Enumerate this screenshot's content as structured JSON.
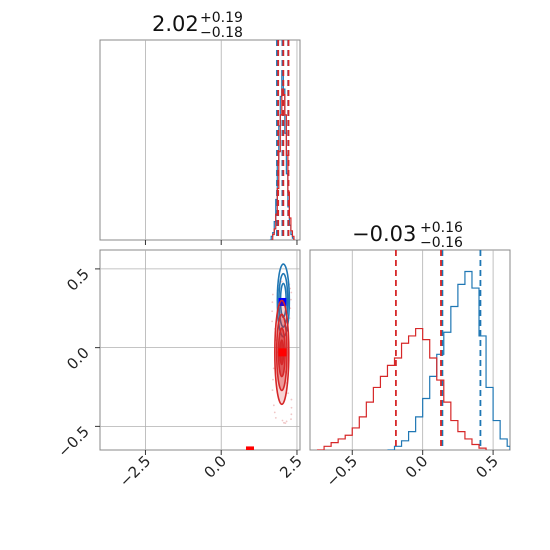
{
  "chart_data": [
    {
      "type": "histogram",
      "panel": "marginal-1",
      "title": {
        "value": "2.02",
        "upper": "+0.19",
        "lower": "−0.18"
      },
      "xlim": [
        -4.0,
        2.6
      ],
      "grid": true,
      "x_tick_values": [
        -2.5,
        0.0,
        2.5
      ],
      "series": [
        {
          "color": "#1f77b4",
          "bins": [
            [
              1.6,
              0.0
            ],
            [
              1.65,
              0.02
            ],
            [
              1.7,
              0.04
            ],
            [
              1.75,
              0.1
            ],
            [
              1.8,
              0.22
            ],
            [
              1.85,
              0.42
            ],
            [
              1.9,
              0.62
            ],
            [
              1.95,
              0.78
            ],
            [
              2.0,
              0.92
            ],
            [
              2.05,
              0.82
            ],
            [
              2.1,
              0.58
            ],
            [
              2.15,
              0.36
            ],
            [
              2.2,
              0.18
            ],
            [
              2.25,
              0.08
            ],
            [
              2.3,
              0.03
            ],
            [
              2.35,
              0.01
            ],
            [
              2.4,
              0.0
            ]
          ],
          "quantile_lines": [
            1.84,
            2.02,
            2.21
          ]
        },
        {
          "color": "#d62728",
          "bins": [
            [
              1.65,
              0.0
            ],
            [
              1.7,
              0.03
            ],
            [
              1.75,
              0.06
            ],
            [
              1.8,
              0.14
            ],
            [
              1.85,
              0.28
            ],
            [
              1.9,
              0.48
            ],
            [
              1.95,
              0.68
            ],
            [
              2.0,
              0.82
            ],
            [
              2.05,
              0.79
            ],
            [
              2.1,
              0.68
            ],
            [
              2.15,
              0.46
            ],
            [
              2.2,
              0.26
            ],
            [
              2.25,
              0.12
            ],
            [
              2.3,
              0.05
            ],
            [
              2.35,
              0.02
            ],
            [
              2.4,
              0.0
            ]
          ],
          "quantile_lines": [
            1.88,
            2.05,
            2.22
          ]
        }
      ]
    },
    {
      "type": "contour",
      "panel": "joint",
      "xlim": [
        -4.0,
        2.6
      ],
      "ylim": [
        -0.65,
        0.62
      ],
      "grid": true,
      "x_tick_labels": [
        "−2.5",
        "0.0",
        "2.5"
      ],
      "y_tick_labels": [
        "0.5",
        "0.0",
        "−0.5"
      ],
      "x_tick_values": [
        -2.5,
        0.0,
        2.5
      ],
      "y_tick_values": [
        0.5,
        0.0,
        -0.5
      ],
      "series": [
        {
          "color": "#1f77b4",
          "center": [
            2.05,
            0.3
          ],
          "spread": [
            0.12,
            0.14
          ],
          "marker": [
            2.02,
            0.29
          ],
          "marker_color": "#0000ff"
        },
        {
          "color": "#d62728",
          "center": [
            2.0,
            -0.03
          ],
          "spread": [
            0.14,
            0.2
          ],
          "marker": [
            2.02,
            -0.03
          ],
          "marker_color": "#ff0000"
        }
      ],
      "extra_marker": {
        "point": [
          0.95,
          -0.64
        ],
        "color": "#ff0000"
      }
    },
    {
      "type": "histogram",
      "panel": "marginal-2",
      "title": {
        "value": "−0.03",
        "upper": "+0.16",
        "lower": "−0.16"
      },
      "xlim": [
        -0.8,
        0.62
      ],
      "grid": true,
      "x_tick_labels": [
        "−0.5",
        "0.0",
        "0.5"
      ],
      "x_tick_values": [
        -0.5,
        0.0,
        0.5
      ],
      "series": [
        {
          "color": "#1f77b4",
          "bins": [
            [
              -0.25,
              0.0
            ],
            [
              -0.2,
              0.02
            ],
            [
              -0.15,
              0.05
            ],
            [
              -0.1,
              0.1
            ],
            [
              -0.05,
              0.18
            ],
            [
              0.0,
              0.28
            ],
            [
              0.05,
              0.4
            ],
            [
              0.1,
              0.52
            ],
            [
              0.15,
              0.64
            ],
            [
              0.2,
              0.78
            ],
            [
              0.25,
              0.9
            ],
            [
              0.3,
              0.97
            ],
            [
              0.35,
              0.88
            ],
            [
              0.4,
              0.62
            ],
            [
              0.45,
              0.34
            ],
            [
              0.5,
              0.16
            ],
            [
              0.55,
              0.06
            ],
            [
              0.6,
              0.02
            ],
            [
              0.62,
              0.0
            ]
          ],
          "quantile_lines": [
            0.14,
            0.41
          ]
        },
        {
          "color": "#d62728",
          "bins": [
            [
              -0.75,
              0.0
            ],
            [
              -0.7,
              0.02
            ],
            [
              -0.65,
              0.04
            ],
            [
              -0.6,
              0.06
            ],
            [
              -0.55,
              0.08
            ],
            [
              -0.5,
              0.12
            ],
            [
              -0.45,
              0.18
            ],
            [
              -0.4,
              0.26
            ],
            [
              -0.35,
              0.34
            ],
            [
              -0.3,
              0.4
            ],
            [
              -0.25,
              0.46
            ],
            [
              -0.2,
              0.5
            ],
            [
              -0.15,
              0.58
            ],
            [
              -0.1,
              0.62
            ],
            [
              -0.05,
              0.66
            ],
            [
              0.0,
              0.6
            ],
            [
              0.05,
              0.5
            ],
            [
              0.1,
              0.38
            ],
            [
              0.15,
              0.26
            ],
            [
              0.2,
              0.16
            ],
            [
              0.25,
              0.1
            ],
            [
              0.3,
              0.06
            ],
            [
              0.35,
              0.03
            ],
            [
              0.4,
              0.01
            ],
            [
              0.45,
              0.0
            ]
          ],
          "quantile_lines": [
            -0.19,
            0.13
          ]
        }
      ]
    }
  ]
}
